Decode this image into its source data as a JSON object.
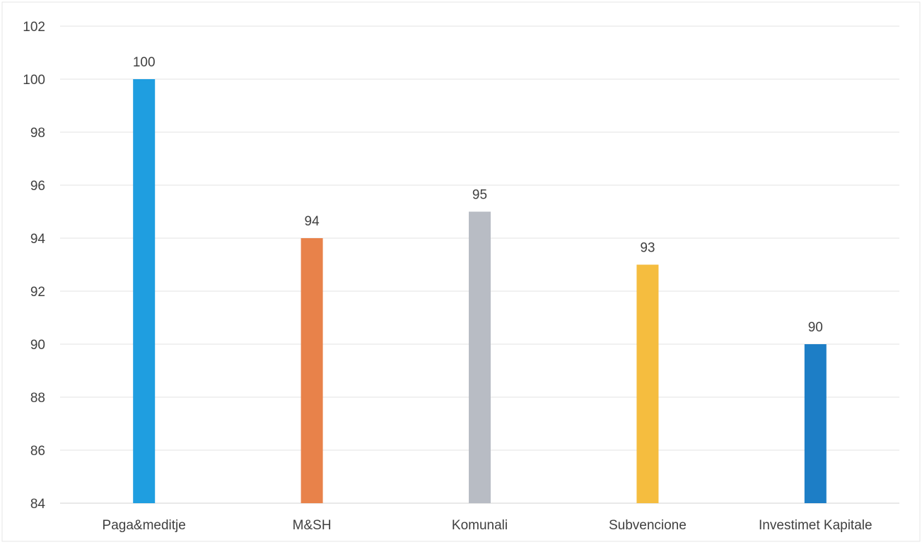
{
  "chart_data": {
    "type": "bar",
    "categories": [
      "Paga&meditje",
      "M&SH",
      "Komunali",
      "Subvencione",
      "Investimet Kapitale"
    ],
    "values": [
      100,
      94,
      95,
      93,
      90
    ],
    "data_labels": [
      "100",
      "94",
      "95",
      "93",
      "90"
    ],
    "ylim": [
      84,
      102
    ],
    "yticks": [
      "84",
      "86",
      "88",
      "90",
      "92",
      "94",
      "96",
      "98",
      "100",
      "102"
    ],
    "title": "",
    "xlabel": "",
    "ylabel": "",
    "grid": true,
    "legend": "none",
    "colors": [
      "#1f9ee0",
      "#e8824a",
      "#b8bcc4",
      "#f5bd3f",
      "#1d7ec6"
    ]
  }
}
